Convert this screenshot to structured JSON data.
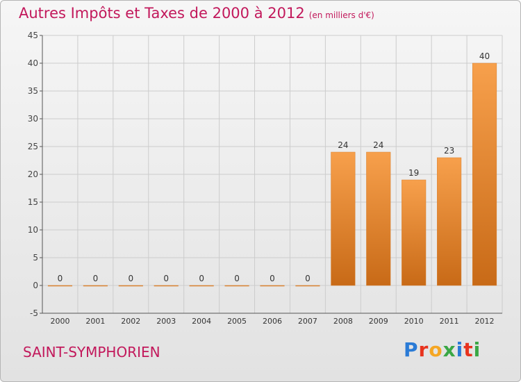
{
  "header": {
    "title": "Autres Impôts et Taxes de 2000 à 2012",
    "unit": "(en milliers d'€)"
  },
  "footer": {
    "place": "SAINT-SYMPHORIEN",
    "logo_letters": [
      "P",
      "r",
      "o",
      "x",
      "i",
      "t",
      "i"
    ],
    "logo_colors": [
      "#2a7bd6",
      "#e8331e",
      "#f5a623",
      "#3aa745",
      "#2a7bd6",
      "#e8331e",
      "#3aa745"
    ]
  },
  "chart_data": {
    "type": "bar",
    "categories": [
      "2000",
      "2001",
      "2002",
      "2003",
      "2004",
      "2005",
      "2006",
      "2007",
      "2008",
      "2009",
      "2010",
      "2011",
      "2012"
    ],
    "values": [
      0,
      0,
      0,
      0,
      0,
      0,
      0,
      0,
      24,
      24,
      19,
      23,
      40
    ],
    "data_labels": [
      "0",
      "0",
      "0",
      "0",
      "0",
      "0",
      "0",
      "0",
      "24",
      "24",
      "19",
      "23",
      "40"
    ],
    "ylim": [
      -5,
      45
    ],
    "yticks": [
      -5,
      0,
      5,
      10,
      15,
      20,
      25,
      30,
      35,
      40,
      45
    ],
    "grid": true,
    "bar_color_top": "#f7a04c",
    "bar_color_bottom": "#c86a17",
    "grid_color": "#cccccc"
  }
}
